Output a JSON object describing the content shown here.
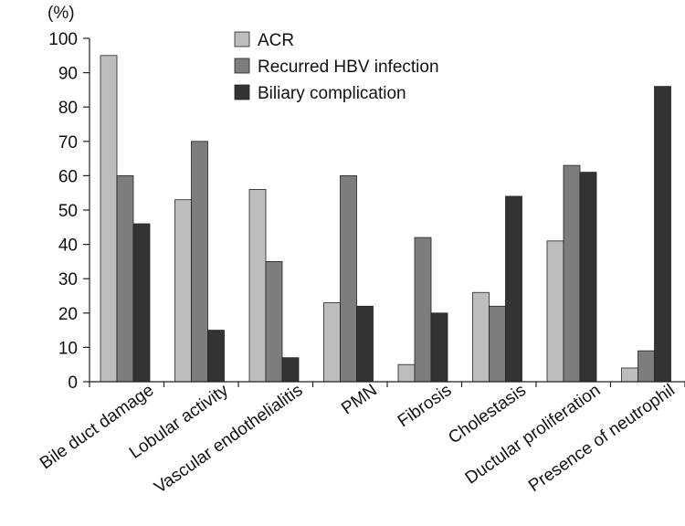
{
  "chart_data": {
    "type": "bar",
    "title": "",
    "xlabel": "",
    "ylabel": "(%)",
    "ylim": [
      0,
      100
    ],
    "yticks": [
      0,
      10,
      20,
      30,
      40,
      50,
      60,
      70,
      80,
      90,
      100
    ],
    "grid": false,
    "legend_position": "top-center",
    "categories": [
      "Bile duct damage",
      "Lobular activity",
      "Vascular endothelialitis",
      "PMN",
      "Fibrosis",
      "Cholestasis",
      "Ductular proliferation",
      "Presence of neutrophil"
    ],
    "series": [
      {
        "name": "ACR",
        "color": "#bdbdbd",
        "values": [
          95,
          53,
          56,
          23,
          5,
          26,
          41,
          4
        ]
      },
      {
        "name": "Recurred HBV infection",
        "color": "#7d7d7d",
        "values": [
          60,
          70,
          35,
          60,
          42,
          22,
          63,
          9
        ]
      },
      {
        "name": "Biliary complication",
        "color": "#333333",
        "values": [
          46,
          15,
          7,
          22,
          20,
          54,
          61,
          86
        ]
      }
    ]
  }
}
